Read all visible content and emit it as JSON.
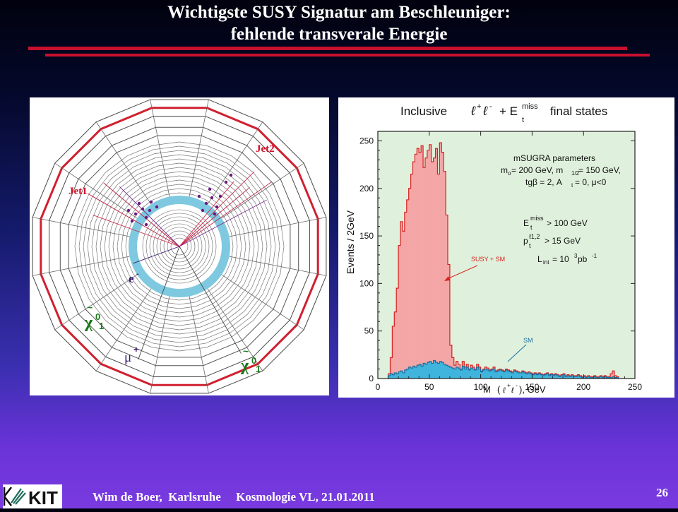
{
  "slide": {
    "title_line1": "Wichtigste SUSY Signatur am Beschleuniger:",
    "title_line2": "fehlende transverale Energie",
    "accent_color": "#c8102e",
    "page_number": "26"
  },
  "footer": {
    "author": "Wim de Boer,",
    "place": "Karlsruhe",
    "course": "Kosmologie VL, 21.01.2011",
    "logo_text": "KIT"
  },
  "event_display": {
    "labels": {
      "jet1": "Jet1",
      "jet2": "Jet2",
      "electron": "e",
      "electron_sign": "-",
      "muon": "μ",
      "muon_sign": "+",
      "neutralino_left": "χ",
      "neutralino_left_sup": "0",
      "neutralino_left_sub": "1",
      "neutralino_right": "χ",
      "neutralino_right_sup": "0",
      "neutralino_right_sub": "1",
      "tilde": "~"
    }
  },
  "chart_data": {
    "type": "bar",
    "title": "Inclusive ℓ⁺ℓ⁻ + E_t^miss final states",
    "title_parts": {
      "inclusive": "Inclusive",
      "l": "ℓ",
      "plus": "+",
      "minus": "-",
      "plus2": "+ E",
      "miss": "miss",
      "t": "t",
      "final": "final states"
    },
    "xlabel": "M (ℓ⁺ℓ⁻), GeV",
    "xlabel_parts": {
      "m": "M",
      "open": "(",
      "l1": "ℓ",
      "sup1": "+",
      "l2": "ℓ",
      "sup2": "-",
      "close": "), GeV"
    },
    "ylabel": "Events / 2GeV",
    "xlim": [
      0,
      250
    ],
    "ylim": [
      0,
      260
    ],
    "xticks": [
      0,
      50,
      100,
      150,
      200,
      250
    ],
    "yticks": [
      0,
      50,
      100,
      150,
      200,
      250
    ],
    "bin_width": 2,
    "series": [
      {
        "name": "SUSY + SM",
        "color": "#f4a6a6",
        "line": "#d82020",
        "bins_start": 10,
        "values": [
          5,
          22,
          55,
          70,
          95,
          140,
          165,
          155,
          175,
          188,
          200,
          215,
          228,
          236,
          242,
          238,
          245,
          222,
          232,
          240,
          246,
          228,
          232,
          242,
          215,
          248,
          238,
          218,
          172,
          120,
          35,
          22,
          14,
          18,
          15,
          10,
          18,
          12,
          15,
          10,
          14,
          12,
          10,
          15,
          12,
          8,
          10,
          12,
          11,
          9,
          10,
          12,
          8,
          9,
          10,
          9,
          8,
          10,
          9,
          8,
          7,
          9,
          8,
          7,
          6,
          8,
          7,
          6,
          7,
          6,
          5,
          6,
          5,
          6,
          5,
          4,
          5,
          6,
          4,
          5,
          4,
          5,
          4,
          3,
          4,
          5,
          3,
          4,
          3,
          4,
          3,
          3,
          4,
          3,
          2,
          3,
          2,
          3,
          2,
          2,
          3,
          2,
          2,
          3,
          2,
          3,
          2,
          2,
          5,
          8,
          3,
          2
        ]
      },
      {
        "name": "SM",
        "color": "#3fb4dc",
        "line": "#1a6fa0",
        "bins_start": 10,
        "values": [
          3,
          5,
          4,
          6,
          5,
          7,
          8,
          6,
          9,
          10,
          12,
          11,
          13,
          12,
          14,
          15,
          13,
          16,
          15,
          17,
          18,
          16,
          19,
          17,
          16,
          18,
          17,
          15,
          14,
          13,
          12,
          11,
          10,
          12,
          11,
          9,
          13,
          10,
          12,
          9,
          11,
          10,
          9,
          12,
          10,
          7,
          9,
          10,
          9,
          8,
          9,
          10,
          7,
          8,
          9,
          8,
          7,
          9,
          8,
          7,
          6,
          8,
          7,
          6,
          6,
          7,
          6,
          5,
          6,
          5,
          4,
          5,
          4,
          5,
          4,
          3,
          4,
          5,
          3,
          4,
          3,
          4,
          3,
          2,
          3,
          4,
          2,
          3,
          2,
          3,
          2,
          2,
          3,
          2,
          1,
          2,
          1,
          2,
          1,
          1,
          2,
          1,
          1,
          2,
          1,
          2,
          1,
          1,
          1,
          2,
          1,
          1
        ]
      }
    ],
    "legend_labels": {
      "susy_sm": "SUSY + SM",
      "sm": "SM"
    },
    "annotations": {
      "param_title": "mSUGRA parameters",
      "param_line1": "m₀ = 200 GeV, m₁/₂ = 150 GeV,",
      "param_line2": "tgβ = 2, A₀ = 0, μ<0",
      "cut1": "E_t^miss > 100 GeV",
      "cut2": "p_t^ℓ1,2 > 15 GeV",
      "cut3": "L_int = 10³ pb⁻¹",
      "param_line1_parts": {
        "m": "m",
        "o": "o",
        "eq": " = 200 GeV, m",
        "half": "1/2",
        "rest": " = 150 GeV,"
      },
      "param_line2_parts": {
        "a": "tgβ = 2, A",
        "t": "t",
        "rest": " = 0, μ<0"
      },
      "cut1_parts": {
        "e": "E",
        "miss": "miss",
        "t": "t",
        "rest": " > 100 GeV"
      },
      "cut2_parts": {
        "p": "p",
        "sup": "ℓ1,2",
        "t": "t",
        "rest": " > 15 GeV"
      },
      "cut3_parts": {
        "l": "L",
        "int": "int",
        "eq": " = 10",
        "exp": "3",
        "pb": " pb",
        "pbexp": "-1"
      }
    },
    "colors": {
      "background": "#dff1dc",
      "axis": "#222222"
    }
  }
}
